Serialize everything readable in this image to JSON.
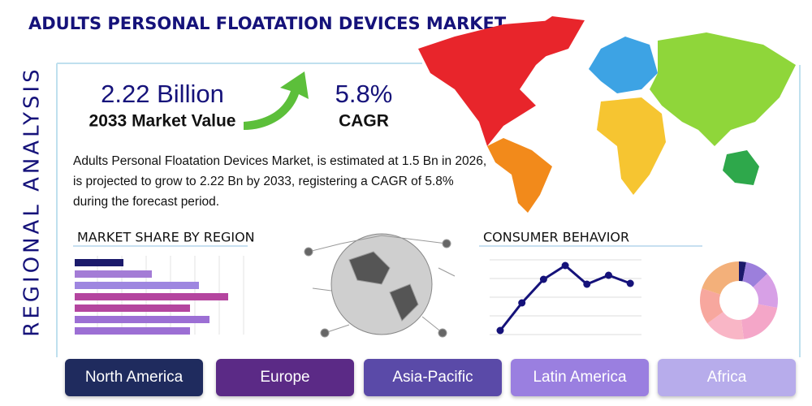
{
  "header": {
    "title": "ADULTS PERSONAL FLOATATION DEVICES MARKET",
    "side_label": "REGIONAL ANALYSIS"
  },
  "metrics": [
    {
      "value": "2.22 Billion",
      "label": "2033 Market Value"
    },
    {
      "value": "5.8%",
      "label": "CAGR"
    }
  ],
  "description": "Adults Personal Floatation Devices Market, is estimated at 1.5 Bn in 2026, is projected to grow to 2.22 Bn by 2033, registering a CAGR of 5.8% during the forecast period.",
  "market_share": {
    "title": "MARKET SHARE BY REGION",
    "values": [
      60,
      95,
      153,
      189,
      142,
      166,
      142
    ],
    "colors": [
      "#1b1a6b",
      "#a47cd6",
      "#9e86e0",
      "#b4459f",
      "#b4459f",
      "#9c6fd4",
      "#9c6fd4"
    ]
  },
  "consumer_behavior": {
    "title": "CONSUMER BEHAVIOR",
    "values": [
      8,
      42,
      71,
      88,
      65,
      76,
      66
    ],
    "color": "#15127a"
  },
  "donut": {
    "values": [
      3,
      10,
      15,
      20,
      17,
      15,
      20
    ],
    "colors": [
      "#1b1a6b",
      "#9c7fdc",
      "#d7a0e6",
      "#f4a6c8",
      "#f9b6c6",
      "#f7a79e",
      "#f3b07a"
    ]
  },
  "regions": [
    {
      "label": "North America",
      "color": "#1f2b5e"
    },
    {
      "label": "Europe",
      "color": "#5b2a86"
    },
    {
      "label": "Asia-Pacific",
      "color": "#5a4aa8"
    },
    {
      "label": "Latin America",
      "color": "#9a7fe0"
    },
    {
      "label": "Africa",
      "color": "#b7aceb"
    }
  ]
}
